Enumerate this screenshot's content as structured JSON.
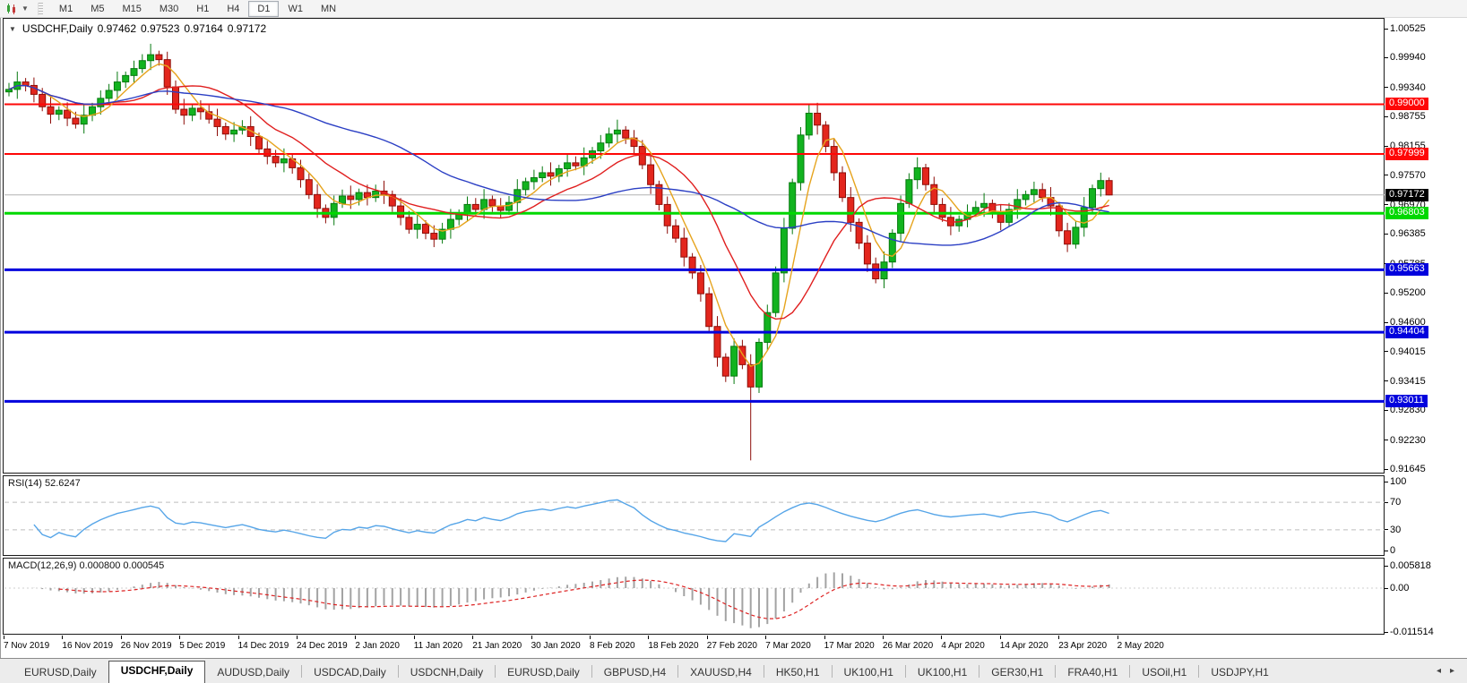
{
  "toolbar": {
    "timeframes": [
      "M1",
      "M5",
      "M15",
      "M30",
      "H1",
      "H4",
      "D1",
      "W1",
      "MN"
    ],
    "active_timeframe": "D1",
    "dropdown_caret": "▼"
  },
  "chart_header": {
    "collapse_icon": "▼",
    "symbol": "USDCHF,Daily",
    "open": "0.97462",
    "high": "0.97523",
    "low": "0.97164",
    "close": "0.97172"
  },
  "price_axis": {
    "ticks": [
      "1.00525",
      "0.99940",
      "0.99340",
      "0.98755",
      "0.98155",
      "0.97570",
      "0.96970",
      "0.96385",
      "0.95785",
      "0.95200",
      "0.94600",
      "0.94015",
      "0.93415",
      "0.92830",
      "0.92230",
      "0.91645"
    ]
  },
  "current_price": {
    "label": "0.97172",
    "value": 0.97172,
    "badge_bg": "#000000",
    "line_color": "#b2b2b2"
  },
  "levels": [
    {
      "label": "0.99000",
      "value": 0.99,
      "color": "#fe0606",
      "width": 2
    },
    {
      "label": "0.97999",
      "value": 0.97999,
      "color": "#fe0606",
      "width": 2
    },
    {
      "label": "0.96803",
      "value": 0.96803,
      "color": "#00d800",
      "width": 3
    },
    {
      "label": "0.95663",
      "value": 0.95663,
      "color": "#0202dd",
      "width": 3
    },
    {
      "label": "0.94404",
      "value": 0.94404,
      "color": "#0202dd",
      "width": 3
    },
    {
      "label": "0.93011",
      "value": 0.93011,
      "color": "#0202dd",
      "width": 3
    }
  ],
  "rsi_panel": {
    "label": "RSI(14) 52.6247",
    "value": 52.6247,
    "line_color": "#56a5e8",
    "ticks": [
      {
        "label": "100",
        "v": 100,
        "dashed": false
      },
      {
        "label": "70",
        "v": 70,
        "dashed": true
      },
      {
        "label": "30",
        "v": 30,
        "dashed": true
      },
      {
        "label": "0",
        "v": 0,
        "dashed": false
      }
    ]
  },
  "macd_panel": {
    "label": "MACD(12,26,9) 0.000800 0.000545",
    "main_value": 0.0008,
    "signal_value": 0.000545,
    "hist_color": "#a3a3a3",
    "signal_color": "#dd2222",
    "ticks": [
      {
        "label": "0.005818",
        "v": 0.005818
      },
      {
        "label": "0.00",
        "v": 0
      },
      {
        "label": "-0.011514",
        "v": -0.011514
      }
    ]
  },
  "date_axis": {
    "labels": [
      "7 Nov 2019",
      "16 Nov 2019",
      "26 Nov 2019",
      "5 Dec 2019",
      "14 Dec 2019",
      "24 Dec 2019",
      "2 Jan 2020",
      "11 Jan 2020",
      "21 Jan 2020",
      "30 Jan 2020",
      "8 Feb 2020",
      "18 Feb 2020",
      "27 Feb 2020",
      "7 Mar 2020",
      "17 Mar 2020",
      "26 Mar 2020",
      "4 Apr 2020",
      "14 Apr 2020",
      "23 Apr 2020",
      "2 May 2020"
    ]
  },
  "tabs": {
    "items": [
      "EURUSD,Daily",
      "USDCHF,Daily",
      "AUDUSD,Daily",
      "USDCAD,Daily",
      "USDCNH,Daily",
      "EURUSD,Daily",
      "GBPUSD,H4",
      "XAUUSD,H4",
      "HK50,H1",
      "UK100,H1",
      "UK100,H1",
      "GER30,H1",
      "FRA40,H1",
      "USOil,H1",
      "USDJPY,H1"
    ],
    "active_index": 1,
    "scroll_left": "◂",
    "scroll_right": "▸"
  },
  "chart_data": {
    "type": "candlestick",
    "title": "USDCHF,Daily",
    "ylim": [
      0.9157,
      1.007
    ],
    "last_ohlc": {
      "open": 0.97462,
      "high": 0.97523,
      "low": 0.97164,
      "close": 0.97172
    },
    "first_open": 0.9925,
    "closes": [
      0.993,
      0.9945,
      0.9938,
      0.992,
      0.9895,
      0.988,
      0.9888,
      0.9872,
      0.986,
      0.9878,
      0.9895,
      0.9912,
      0.9928,
      0.9945,
      0.9958,
      0.9972,
      0.9988,
      1.0,
      0.999,
      0.9935,
      0.989,
      0.9878,
      0.9892,
      0.9885,
      0.987,
      0.9855,
      0.984,
      0.9848,
      0.9855,
      0.9835,
      0.981,
      0.9795,
      0.9782,
      0.979,
      0.9772,
      0.9748,
      0.9718,
      0.969,
      0.9672,
      0.97,
      0.9715,
      0.9708,
      0.9722,
      0.9712,
      0.9725,
      0.9718,
      0.9695,
      0.9672,
      0.9648,
      0.9658,
      0.964,
      0.9628,
      0.9648,
      0.9668,
      0.968,
      0.9698,
      0.9688,
      0.9708,
      0.9695,
      0.9686,
      0.9702,
      0.9728,
      0.9744,
      0.9752,
      0.9762,
      0.9755,
      0.977,
      0.9782,
      0.9776,
      0.9792,
      0.9806,
      0.9822,
      0.984,
      0.9848,
      0.9832,
      0.9815,
      0.9778,
      0.9738,
      0.9698,
      0.9655,
      0.963,
      0.9592,
      0.956,
      0.9518,
      0.9452,
      0.939,
      0.9352,
      0.9412,
      0.9375,
      0.933,
      0.942,
      0.948,
      0.956,
      0.965,
      0.9742,
      0.9838,
      0.9882,
      0.9858,
      0.9815,
      0.9762,
      0.9712,
      0.9662,
      0.962,
      0.9578,
      0.9548,
      0.9582,
      0.964,
      0.97,
      0.9748,
      0.9772,
      0.9738,
      0.9698,
      0.9672,
      0.9655,
      0.9668,
      0.9682,
      0.9692,
      0.97,
      0.9682,
      0.9662,
      0.9688,
      0.9708,
      0.9718,
      0.9728,
      0.9712,
      0.9695,
      0.9645,
      0.9618,
      0.9652,
      0.9692,
      0.973,
      0.97462,
      0.97172
    ],
    "wick_overrides": {
      "17": {
        "high": 1.0022
      },
      "89": {
        "low": 0.9182
      },
      "96": {
        "high": 0.9899
      },
      "132": {
        "high": 0.97523,
        "low": 0.97164
      }
    },
    "moving_averages": [
      {
        "period": 5,
        "color": "#e6a41e",
        "name": "fast"
      },
      {
        "period": 13,
        "color": "#e01f1f",
        "name": "mid"
      },
      {
        "period": 34,
        "color": "#2b3fc4",
        "name": "slow"
      }
    ],
    "rsi_period": 14,
    "macd_params": [
      12,
      26,
      9
    ],
    "bull_color": "#12b31f",
    "bull_border": "#077a10",
    "bear_color": "#e3261d",
    "bear_border": "#8e0d08"
  }
}
